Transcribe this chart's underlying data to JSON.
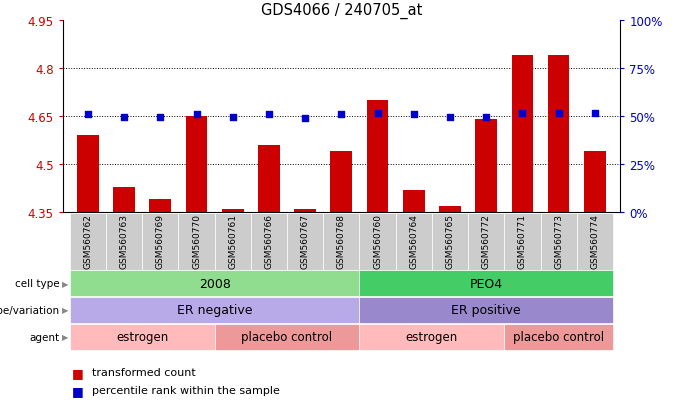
{
  "title": "GDS4066 / 240705_at",
  "samples": [
    "GSM560762",
    "GSM560763",
    "GSM560769",
    "GSM560770",
    "GSM560761",
    "GSM560766",
    "GSM560767",
    "GSM560768",
    "GSM560760",
    "GSM560764",
    "GSM560765",
    "GSM560772",
    "GSM560771",
    "GSM560773",
    "GSM560774"
  ],
  "bar_values": [
    4.59,
    4.43,
    4.39,
    4.65,
    4.36,
    4.56,
    4.36,
    4.54,
    4.7,
    4.42,
    4.37,
    4.64,
    4.84,
    4.84,
    4.54
  ],
  "dot_values": [
    4.655,
    4.648,
    4.647,
    4.657,
    4.648,
    4.655,
    4.645,
    4.655,
    4.658,
    4.655,
    4.646,
    4.648,
    4.66,
    4.66,
    4.66
  ],
  "ymin": 4.35,
  "ymax": 4.95,
  "yticks": [
    4.35,
    4.5,
    4.65,
    4.8,
    4.95
  ],
  "right_yticks": [
    0,
    25,
    50,
    75,
    100
  ],
  "bar_color": "#cc0000",
  "dot_color": "#0000cc",
  "cell_type_data": [
    {
      "label": "2008",
      "start": 0,
      "end": 7,
      "color": "#90dd90"
    },
    {
      "label": "PEO4",
      "start": 8,
      "end": 14,
      "color": "#44cc66"
    }
  ],
  "genotype_data": [
    {
      "label": "ER negative",
      "start": 0,
      "end": 7,
      "color": "#b8aae8"
    },
    {
      "label": "ER positive",
      "start": 8,
      "end": 14,
      "color": "#9988cc"
    }
  ],
  "agent_data": [
    {
      "label": "estrogen",
      "start": 0,
      "end": 3,
      "color": "#ffbbbb"
    },
    {
      "label": "placebo control",
      "start": 4,
      "end": 7,
      "color": "#ee9999"
    },
    {
      "label": "estrogen",
      "start": 8,
      "end": 11,
      "color": "#ffbbbb"
    },
    {
      "label": "placebo control",
      "start": 12,
      "end": 14,
      "color": "#ee9999"
    }
  ],
  "row_labels": [
    "cell type",
    "genotype/variation",
    "agent"
  ],
  "legend_bar_label": "transformed count",
  "legend_dot_label": "percentile rank within the sample",
  "xlabel_color": "#cc0000",
  "right_ylabel_color": "#0000cc",
  "sample_box_color": "#cccccc"
}
